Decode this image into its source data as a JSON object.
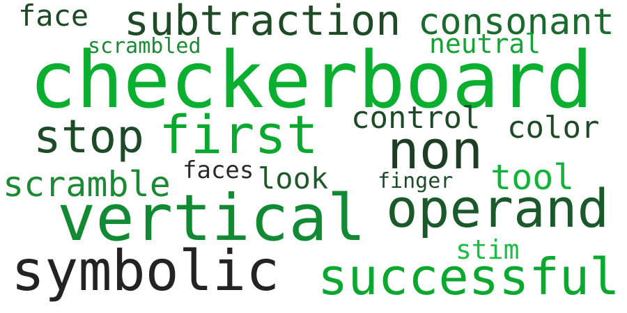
{
  "word_cloud": {
    "words": [
      {
        "text": "checkerboard",
        "color": "#0aaf2f"
      },
      {
        "text": "vertical",
        "color": "#128a33"
      },
      {
        "text": "symbolic",
        "color": "#232323"
      },
      {
        "text": "successful",
        "color": "#0aa82f"
      },
      {
        "text": "operand",
        "color": "#1a5a2a"
      },
      {
        "text": "non",
        "color": "#1d3d24"
      },
      {
        "text": "first",
        "color": "#0aa82f"
      },
      {
        "text": "stop",
        "color": "#1e4a28"
      },
      {
        "text": "subtraction",
        "color": "#1f4a26"
      },
      {
        "text": "consonant",
        "color": "#1a6b2d"
      },
      {
        "text": "scramble",
        "color": "#1c8a35"
      },
      {
        "text": "control",
        "color": "#1e4a28"
      },
      {
        "text": "color",
        "color": "#1e4a28"
      },
      {
        "text": "tool",
        "color": "#13b33a"
      },
      {
        "text": "face",
        "color": "#1f4a26"
      },
      {
        "text": "look",
        "color": "#1f5a2b"
      },
      {
        "text": "neutral",
        "color": "#16a335"
      },
      {
        "text": "stim",
        "color": "#1cbc45"
      },
      {
        "text": "faces",
        "color": "#2a2a2a"
      },
      {
        "text": "scrambled",
        "color": "#1c8a35"
      },
      {
        "text": "finger",
        "color": "#1e4a28"
      }
    ]
  }
}
